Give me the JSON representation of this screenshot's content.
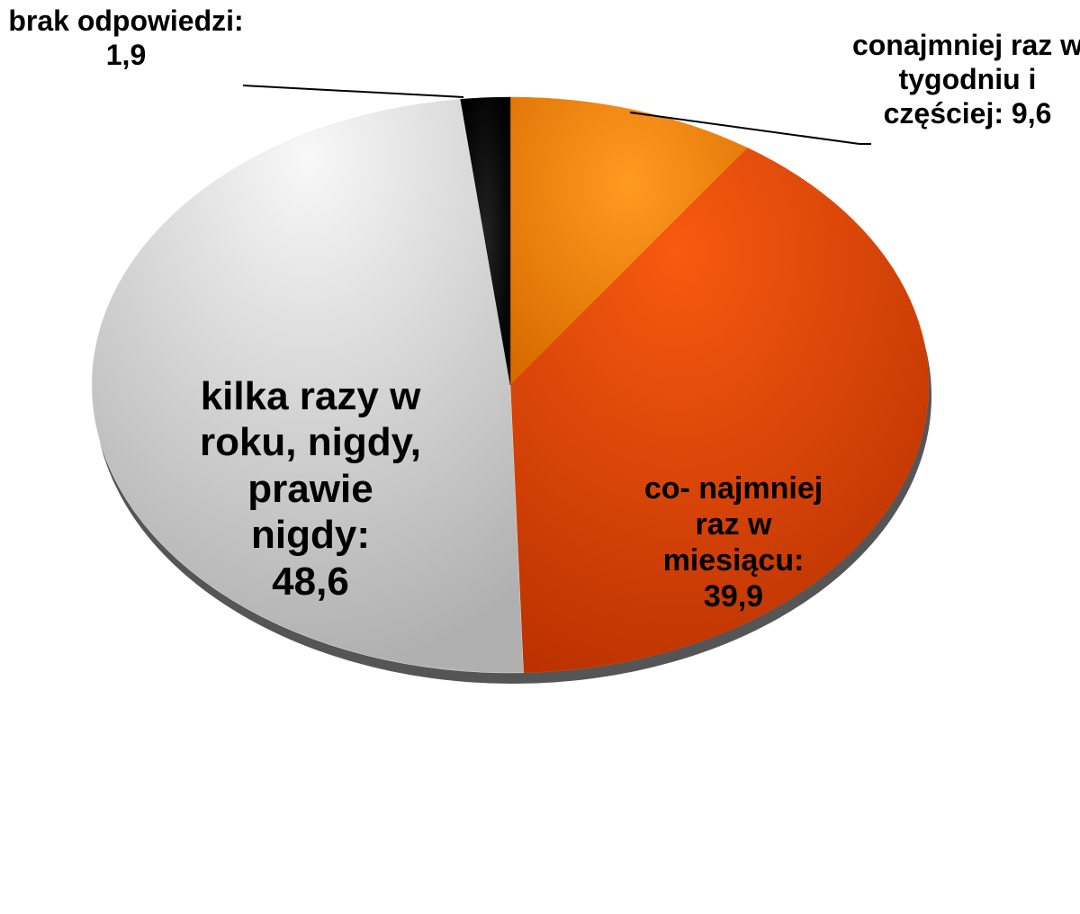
{
  "chart_data": {
    "type": "pie",
    "categories": [
      "conajmniej raz w tygodniu i częściej:",
      "co- najmniej raz w miesiącu:",
      "kilka razy w roku, nigdy, prawie nigdy:",
      "brak odpowiedzi:"
    ],
    "values": [
      9.6,
      39.9,
      48.6,
      1.9
    ],
    "value_labels": [
      "9,6",
      "39,9",
      "48,6",
      "1,9"
    ],
    "colors": [
      "#f08010",
      "#e04808",
      "#e4e4e4",
      "#111111"
    ]
  }
}
